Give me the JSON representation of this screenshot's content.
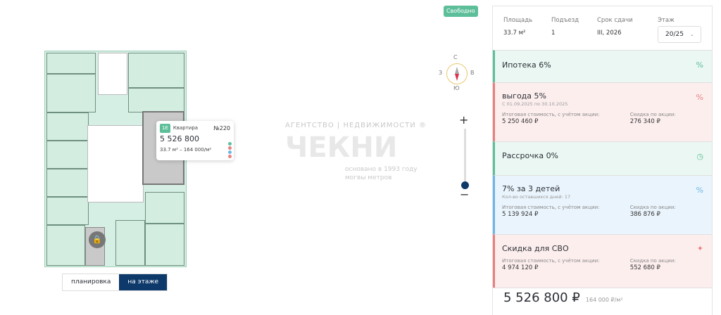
{
  "status_badge": "Свободно",
  "compass": {
    "n": "С",
    "s": "Ю",
    "w": "З",
    "e": "В"
  },
  "zoom": {
    "plus": "+",
    "minus": "−",
    "level": 0
  },
  "watermark": {
    "line1": "АГЕНТСТВО",
    "line2": "НЕДВИЖИМОСТИ ®",
    "logo": "ЧЕКНИ",
    "line3": "основано в 1993 году",
    "line4": "могвы метров"
  },
  "tooltip": {
    "tag": "1Е",
    "type": "Квартира",
    "number": "№220",
    "price": "5 526 800",
    "details": "33.7 м² – 164 000/м²",
    "dot_colors": [
      "#5dbf9a",
      "#e98080",
      "#6fb6e6",
      "#5dbf9a",
      "#e98080"
    ]
  },
  "view_tabs": [
    {
      "label": "планировка",
      "active": false
    },
    {
      "label": "на этаже",
      "active": true
    }
  ],
  "info": {
    "area_label": "Площадь",
    "area": "33.7 м²",
    "entrance_label": "Подъезд",
    "entrance": "1",
    "deadline_label": "Срок сдачи",
    "deadline": "III, 2026",
    "floor_label": "Этаж",
    "floor": "20/25"
  },
  "offers": [
    {
      "title": "Ипотека 6%",
      "icon": "percent-icon",
      "color": "#5dbf9a",
      "bg": "#eaf7f2"
    },
    {
      "title": "выгода 5%",
      "subtitle": "С 01.09.2025 по 30.10.2025",
      "total_label": "Итоговая стоимость, с учётом акции:",
      "total": "5 250 460 ₽",
      "discount_label": "Скидка по акции:",
      "discount": "276 340 ₽",
      "icon": "percent-icon",
      "color": "#e98080",
      "bg": "#fdeeee"
    },
    {
      "title": "Рассрочка 0%",
      "icon": "clock-icon",
      "color": "#5dbf9a",
      "bg": "#eaf7f2"
    },
    {
      "title": "7% за 3 детей",
      "subtitle": "Кол-во оставшихся дней: 17",
      "total_label": "Итоговая стоимость, с учётом акции:",
      "total": "5 139 924 ₽",
      "discount_label": "Скидка по акции:",
      "discount": "386 876 ₽",
      "icon": "percent-icon",
      "color": "#6fb6e6",
      "bg": "#eaf4fc"
    },
    {
      "title": "Скидка для СВО",
      "total_label": "Итоговая стоимость, с учётом акции:",
      "total": "4 974 120 ₽",
      "discount_label": "Скидка по акции:",
      "discount": "552 680 ₽",
      "icon": "sparkle-icon",
      "color": "#e98080",
      "bg": "#fdeeee"
    }
  ],
  "price": {
    "total": "5 526 800 ₽",
    "per_m2": "164 000 ₽/м²"
  }
}
